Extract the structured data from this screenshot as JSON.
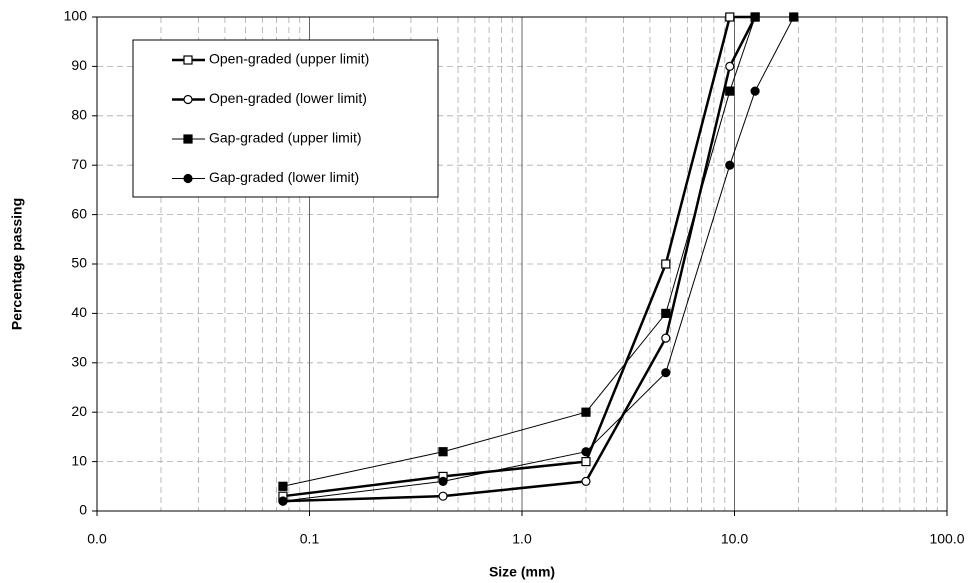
{
  "chart_data": {
    "type": "line",
    "x_label": "Size (mm)",
    "y_label": "Percentage passing",
    "xscale": "log",
    "xlim": [
      0.01,
      100
    ],
    "ylim": [
      0,
      100
    ],
    "xticks": [
      {
        "value": 0.01,
        "label": "0.0"
      },
      {
        "value": 0.1,
        "label": "0.1"
      },
      {
        "value": 1,
        "label": "1.0"
      },
      {
        "value": 10,
        "label": "10.0"
      },
      {
        "value": 100,
        "label": "100.0"
      }
    ],
    "yticks": [
      0,
      10,
      20,
      30,
      40,
      50,
      60,
      70,
      80,
      90,
      100
    ],
    "grid": true,
    "minor_grid": true,
    "legend": "upper left",
    "series": [
      {
        "name": "Open-graded (upper limit)",
        "color": "#000000",
        "marker": "square",
        "filled": false,
        "line_width": 2.5,
        "x": [
          0.075,
          0.425,
          2.0,
          4.75,
          9.5,
          12.5
        ],
        "values": [
          3,
          7,
          10,
          50,
          100,
          100
        ]
      },
      {
        "name": "Open-graded (lower limit)",
        "color": "#000000",
        "marker": "circle",
        "filled": false,
        "line_width": 2.5,
        "x": [
          0.075,
          0.425,
          2.0,
          4.75,
          9.5,
          12.5
        ],
        "values": [
          2,
          3,
          6,
          35,
          90,
          100
        ]
      },
      {
        "name": "Gap-graded (upper limit)",
        "color": "#000000",
        "marker": "square",
        "filled": true,
        "line_width": 1,
        "x": [
          0.075,
          0.425,
          2.0,
          4.75,
          9.5,
          12.5,
          19.0
        ],
        "values": [
          5,
          12,
          20,
          40,
          85,
          100,
          100
        ]
      },
      {
        "name": "Gap-graded (lower limit)",
        "color": "#000000",
        "marker": "circle",
        "filled": true,
        "line_width": 1,
        "x": [
          0.075,
          0.425,
          2.0,
          4.75,
          9.5,
          12.5,
          19.0
        ],
        "values": [
          2,
          6,
          12,
          28,
          70,
          85,
          100
        ]
      }
    ]
  }
}
